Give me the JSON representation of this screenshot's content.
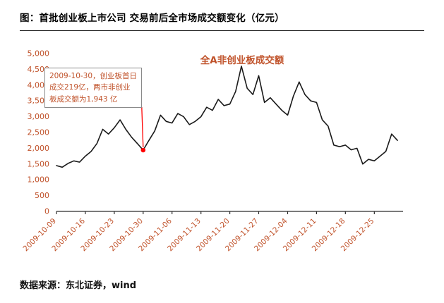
{
  "header": {
    "title": "图：首批创业板上市公司 交易前后全市场成交额变化（亿元）"
  },
  "footer": {
    "source": "数据来源：东北证券，wind"
  },
  "colors": {
    "accent": "#C0522A",
    "line": "#1a1a1a",
    "marker": "#ff0000",
    "axis": "#2b2b2b"
  },
  "chart_data": {
    "type": "line",
    "title": "全A非创业板成交额",
    "unit": "亿元",
    "grid": false,
    "legend": "none",
    "ylim": [
      0,
      5000
    ],
    "y_tick_values": [
      0,
      500,
      1000,
      1500,
      2000,
      2500,
      3000,
      3500,
      4000,
      4500,
      5000
    ],
    "y_tick_labels": [
      "0",
      "500",
      "1,000",
      "1,500",
      "2,000",
      "2,500",
      "3,000",
      "3,500",
      "4,000",
      "4,500",
      "5,000"
    ],
    "x": [
      "2009-10-09",
      "2009-10-12",
      "2009-10-13",
      "2009-10-14",
      "2009-10-15",
      "2009-10-16",
      "2009-10-19",
      "2009-10-20",
      "2009-10-21",
      "2009-10-22",
      "2009-10-23",
      "2009-10-26",
      "2009-10-27",
      "2009-10-28",
      "2009-10-29",
      "2009-10-30",
      "2009-11-02",
      "2009-11-03",
      "2009-11-04",
      "2009-11-05",
      "2009-11-06",
      "2009-11-09",
      "2009-11-10",
      "2009-11-11",
      "2009-11-12",
      "2009-11-13",
      "2009-11-16",
      "2009-11-17",
      "2009-11-18",
      "2009-11-19",
      "2009-11-20",
      "2009-11-23",
      "2009-11-24",
      "2009-11-25",
      "2009-11-26",
      "2009-11-27",
      "2009-11-30",
      "2009-12-01",
      "2009-12-02",
      "2009-12-03",
      "2009-12-04",
      "2009-12-07",
      "2009-12-08",
      "2009-12-09",
      "2009-12-10",
      "2009-12-11",
      "2009-12-14",
      "2009-12-15",
      "2009-12-16",
      "2009-12-17",
      "2009-12-18",
      "2009-12-21",
      "2009-12-22",
      "2009-12-23",
      "2009-12-24",
      "2009-12-25",
      "2009-12-28",
      "2009-12-29",
      "2009-12-30",
      "2009-12-31"
    ],
    "values": [
      1450,
      1400,
      1520,
      1600,
      1560,
      1750,
      1900,
      2150,
      2600,
      2450,
      2650,
      2900,
      2600,
      2350,
      2150,
      1943,
      2250,
      2550,
      3050,
      2850,
      2800,
      3100,
      3000,
      2750,
      2850,
      3000,
      3300,
      3200,
      3550,
      3350,
      3400,
      3800,
      4600,
      3900,
      3700,
      4300,
      3450,
      3600,
      3400,
      3200,
      3050,
      3650,
      4100,
      3700,
      3500,
      3450,
      2900,
      2700,
      2100,
      2050,
      2100,
      1950,
      2000,
      1500,
      1650,
      1600,
      1750,
      1900,
      2450,
      2250
    ],
    "x_tick_indices": [
      0,
      5,
      10,
      15,
      20,
      25,
      30,
      35,
      40,
      45,
      50,
      55
    ],
    "x_tick_labels": [
      "2009-10-09",
      "2009-10-16",
      "2009-10-23",
      "2009-10-30",
      "2009-11-06",
      "2009-11-13",
      "2009-11-20",
      "2009-11-27",
      "2009-12-04",
      "2009-12-11",
      "2009-12-18",
      "2009-12-25"
    ],
    "annotation": {
      "index": 15,
      "date": "2009-10-30",
      "value": 1943,
      "text": "2009-10-30，创业板首日\n成交219亿，两市非创业\n板成交额为1,943 亿"
    }
  }
}
